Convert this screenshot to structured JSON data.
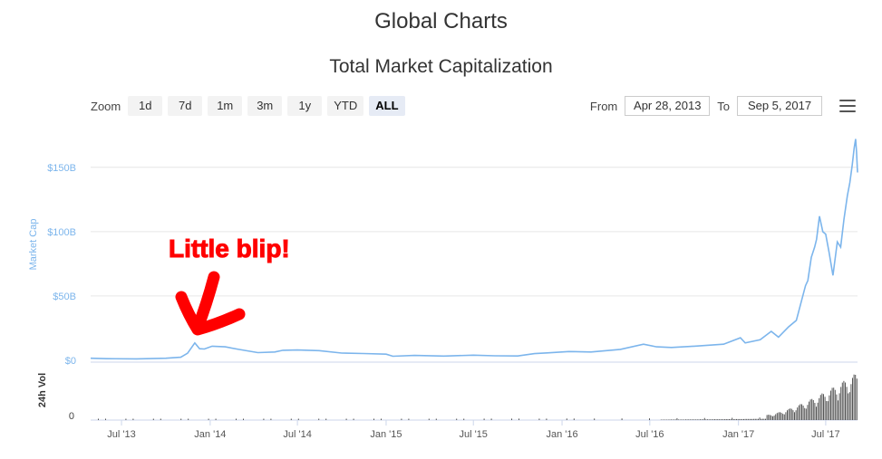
{
  "page": {
    "title": "Global Charts"
  },
  "chart_data": {
    "type": "line",
    "title": "Total Market Capitalization",
    "ylabel": "Market Cap",
    "ylabel_volume": "24h Vol",
    "y_ticks": [
      "$0",
      "$50B",
      "$100B",
      "$150B"
    ],
    "y_tick_values": [
      0,
      50,
      100,
      150
    ],
    "volume_ticks": [
      "0"
    ],
    "x_ticks": [
      "Jul '13",
      "Jan '14",
      "Jul '14",
      "Jan '15",
      "Jul '15",
      "Jan '16",
      "Jul '16",
      "Jan '17",
      "Jul '17"
    ],
    "x_tick_dates": [
      "2013-07-01",
      "2014-01-01",
      "2014-07-01",
      "2015-01-01",
      "2015-07-01",
      "2016-01-01",
      "2016-07-01",
      "2017-01-01",
      "2017-07-01"
    ],
    "ylim": [
      0,
      178
    ],
    "xlim": [
      "2013-04-28",
      "2017-09-05"
    ],
    "grid": true,
    "color": "#7cb5ec",
    "volume_color": "#555555",
    "series": [
      {
        "x": [
          "2013-04-28",
          "2013-06-01",
          "2013-08-01",
          "2013-10-01",
          "2013-11-01",
          "2013-11-15",
          "2013-11-30",
          "2013-12-10",
          "2013-12-20",
          "2014-01-05",
          "2014-02-01",
          "2014-03-01",
          "2014-04-10",
          "2014-05-15",
          "2014-06-01",
          "2014-07-01",
          "2014-08-15",
          "2014-10-01",
          "2014-11-15",
          "2015-01-01",
          "2015-01-15",
          "2015-03-01",
          "2015-05-01",
          "2015-07-01",
          "2015-08-15",
          "2015-10-01",
          "2015-11-05",
          "2015-12-01",
          "2016-01-15",
          "2016-03-01",
          "2016-05-01",
          "2016-06-18",
          "2016-07-15",
          "2016-08-15",
          "2016-10-01",
          "2016-12-01",
          "2017-01-05",
          "2017-01-15",
          "2017-02-15",
          "2017-03-10",
          "2017-03-25",
          "2017-04-15",
          "2017-05-01",
          "2017-05-20",
          "2017-05-25",
          "2017-06-01",
          "2017-06-08",
          "2017-06-12",
          "2017-06-18",
          "2017-06-25",
          "2017-07-01",
          "2017-07-08",
          "2017-07-16",
          "2017-07-25",
          "2017-08-01",
          "2017-08-08",
          "2017-08-15",
          "2017-08-20",
          "2017-08-25",
          "2017-08-29",
          "2017-09-01",
          "2017-09-03",
          "2017-09-05"
        ],
        "values": [
          1.6,
          1.3,
          1.1,
          1.6,
          2.4,
          5.5,
          13.5,
          9.0,
          8.8,
          11.0,
          10.5,
          8.5,
          6.0,
          6.5,
          7.8,
          8.0,
          7.5,
          5.6,
          5.3,
          4.8,
          3.2,
          3.8,
          3.3,
          4.0,
          3.5,
          3.4,
          5.2,
          5.8,
          6.8,
          6.5,
          8.5,
          12.5,
          10.5,
          10.0,
          11.0,
          12.5,
          17.5,
          13.5,
          16.0,
          22.5,
          18.0,
          26.0,
          31.0,
          58.0,
          62.0,
          80.0,
          88.0,
          94.0,
          112.0,
          100.0,
          98.0,
          84.0,
          66.0,
          92.0,
          88.0,
          110.0,
          128.0,
          138.0,
          152.0,
          165.0,
          172.0,
          162.0,
          146.0
        ]
      }
    ],
    "annotation": {
      "text": "Little blip!",
      "color": "#ff0000"
    }
  },
  "toolbar": {
    "zoom_label": "Zoom",
    "zoom_buttons": [
      "1d",
      "7d",
      "1m",
      "3m",
      "1y",
      "YTD",
      "ALL"
    ],
    "active_zoom": "ALL",
    "from_label": "From",
    "from_value": "Apr 28, 2013",
    "to_label": "To",
    "to_value": "Sep 5, 2017"
  }
}
